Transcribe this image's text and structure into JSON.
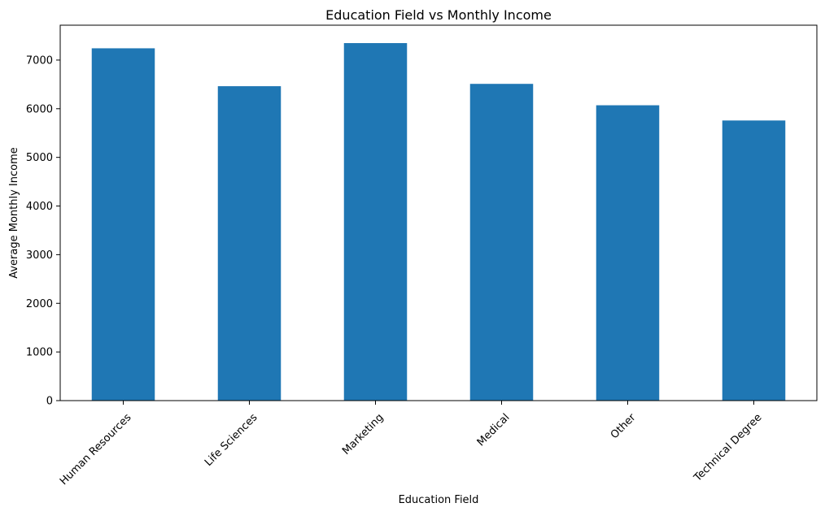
{
  "chart_data": {
    "type": "bar",
    "title": "Education Field vs Monthly Income",
    "xlabel": "Education Field",
    "ylabel": "Average Monthly Income",
    "categories": [
      "Human Resources",
      "Life Sciences",
      "Marketing",
      "Medical",
      "Other",
      "Technical Degree"
    ],
    "values": [
      7242,
      6463,
      7349,
      6511,
      6071,
      5758
    ],
    "ylim": [
      0,
      7717
    ],
    "yticks": [
      0,
      1000,
      2000,
      3000,
      4000,
      5000,
      6000,
      7000
    ],
    "grid": false,
    "legend": "none",
    "bar_color": "#1f77b4"
  }
}
